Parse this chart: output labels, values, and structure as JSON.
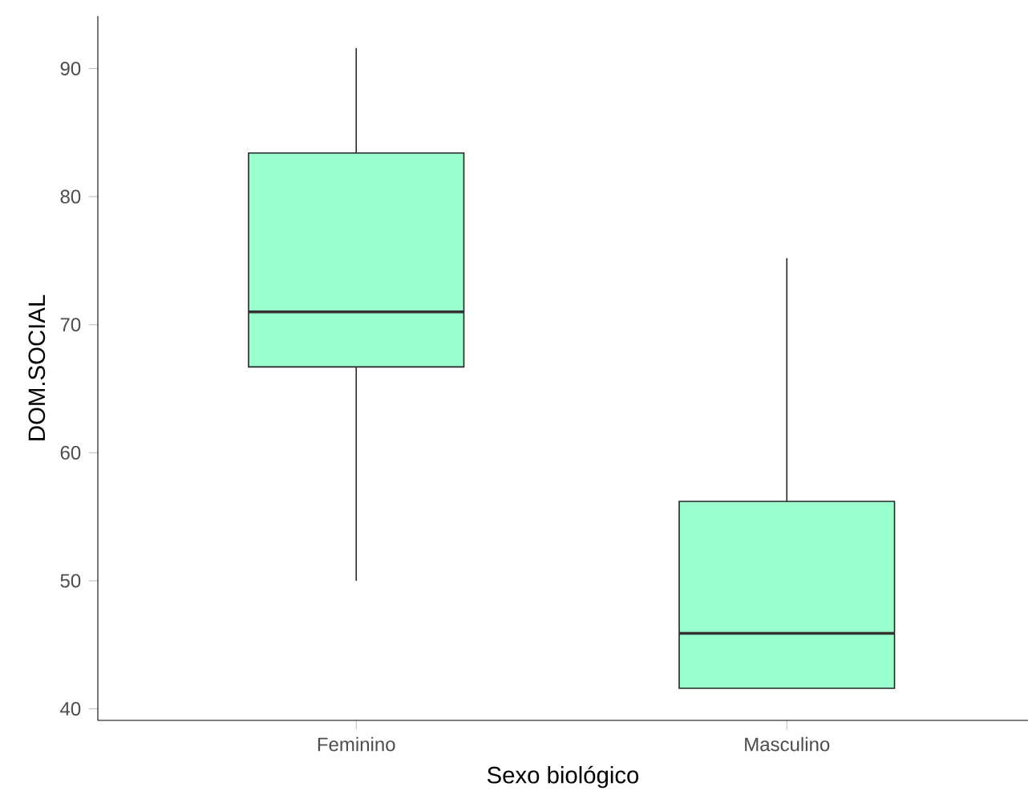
{
  "chart_data": {
    "type": "box",
    "xlabel": "Sexo biológico",
    "ylabel": "DOM.SOCIAL",
    "categories": [
      "Feminino",
      "Masculino"
    ],
    "boxes": [
      {
        "low": 50.0,
        "q1": 66.7,
        "median": 71.0,
        "q3": 83.4,
        "high": 91.6
      },
      {
        "low": 41.6,
        "q1": 41.6,
        "median": 45.9,
        "q3": 56.2,
        "high": 75.2
      }
    ],
    "color": "#99ffcc",
    "ylim": [
      39.1,
      94.1
    ],
    "yticks": [
      40,
      50,
      60,
      70,
      80,
      90
    ],
    "grid": false
  }
}
